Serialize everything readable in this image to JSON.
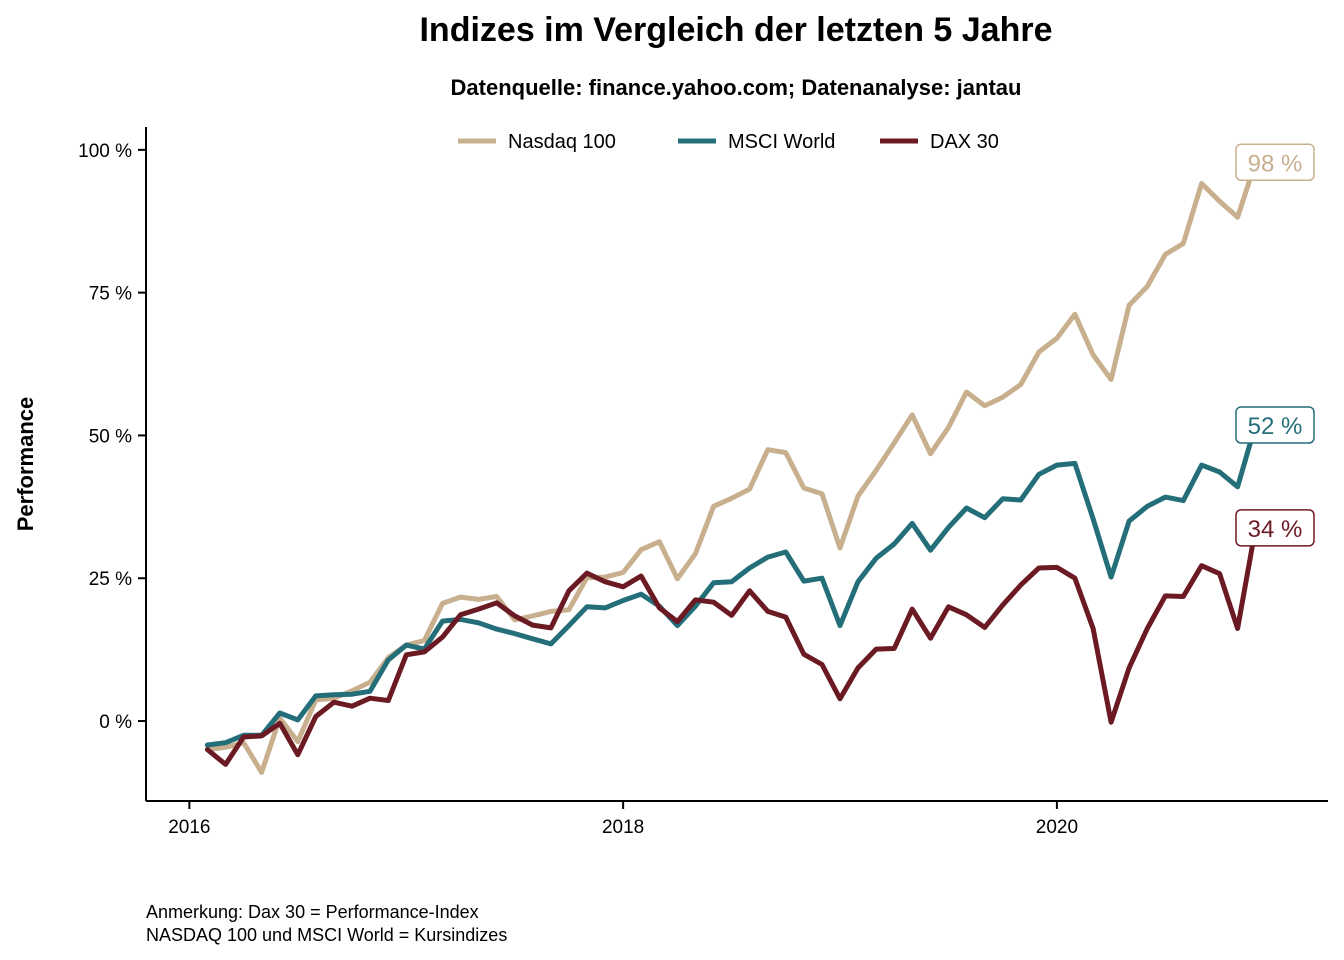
{
  "chart_data": {
    "type": "line",
    "title": "Indizes im Vergleich der letzten 5 Jahre",
    "subtitle": "Datenquelle: finance.yahoo.com; Datenanalyse: jantau",
    "xlabel": "",
    "ylabel": "Performance",
    "xlim": [
      2015.8,
      2021.25
    ],
    "ylim": [
      -14,
      104
    ],
    "x_ticks": [
      {
        "value": 2016,
        "label": "2016"
      },
      {
        "value": 2018,
        "label": "2018"
      },
      {
        "value": 2020,
        "label": "2020"
      }
    ],
    "y_ticks": [
      {
        "value": 0,
        "label": "0 %"
      },
      {
        "value": 25,
        "label": "25 %"
      },
      {
        "value": 50,
        "label": "50 %"
      },
      {
        "value": 75,
        "label": "75 %"
      },
      {
        "value": 100,
        "label": "100 %"
      }
    ],
    "grid": false,
    "legend_position": "top",
    "x": [
      2016.083,
      2016.167,
      2016.25,
      2016.333,
      2016.417,
      2016.5,
      2016.583,
      2016.667,
      2016.75,
      2016.833,
      2016.917,
      2017.0,
      2017.083,
      2017.167,
      2017.25,
      2017.333,
      2017.417,
      2017.5,
      2017.583,
      2017.667,
      2017.75,
      2017.833,
      2017.917,
      2018.0,
      2018.083,
      2018.167,
      2018.25,
      2018.333,
      2018.417,
      2018.5,
      2018.583,
      2018.667,
      2018.75,
      2018.833,
      2018.917,
      2019.0,
      2019.083,
      2019.167,
      2019.25,
      2019.333,
      2019.417,
      2019.5,
      2019.583,
      2019.667,
      2019.75,
      2019.833,
      2019.917,
      2020.0,
      2020.083,
      2020.167,
      2020.25,
      2020.333,
      2020.417,
      2020.5,
      2020.583,
      2020.667,
      2020.75,
      2020.833,
      2020.917
    ],
    "series": [
      {
        "name": "Nasdaq 100",
        "color": "#c8b08f",
        "end_label": "98 %",
        "values": [
          -5.0,
          -4.6,
          -3.8,
          -9.0,
          0.5,
          -3.6,
          3.7,
          4.0,
          5.3,
          6.8,
          11.1,
          13.3,
          14.1,
          20.6,
          21.7,
          21.3,
          21.8,
          17.7,
          18.4,
          19.2,
          19.5,
          25.1,
          25.2,
          26.0,
          30.0,
          31.4,
          24.9,
          29.3,
          37.6,
          39.0,
          40.6,
          47.5,
          47.0,
          40.8,
          39.8,
          30.3,
          39.4,
          43.9,
          48.7,
          53.6,
          46.8,
          51.4,
          57.6,
          55.2,
          56.7,
          58.9,
          64.6,
          67.0,
          71.2,
          64.1,
          59.8,
          72.8,
          76.1,
          81.7,
          83.6,
          94.1,
          91.0,
          88.2,
          98.0
        ]
      },
      {
        "name": "MSCI World",
        "color": "#236e78",
        "end_label": "52 %",
        "values": [
          -4.2,
          -3.8,
          -2.5,
          -2.5,
          1.4,
          0.2,
          4.4,
          4.6,
          4.7,
          5.2,
          10.7,
          13.3,
          12.6,
          17.5,
          17.8,
          17.2,
          16.1,
          15.3,
          14.4,
          13.5,
          16.7,
          20.0,
          19.8,
          21.1,
          22.2,
          20.1,
          16.7,
          20.1,
          24.2,
          24.4,
          26.8,
          28.7,
          29.6,
          24.5,
          25.0,
          16.7,
          24.4,
          28.5,
          31.0,
          34.6,
          29.9,
          33.9,
          37.3,
          35.6,
          38.9,
          38.7,
          43.2,
          44.8,
          45.1,
          35.4,
          25.2,
          35.0,
          37.6,
          39.2,
          38.6,
          44.8,
          43.6,
          41.0,
          52.0
        ]
      },
      {
        "name": "DAX 30",
        "color": "#6b1a23",
        "end_label": "34 %",
        "values": [
          -5.0,
          -7.6,
          -2.8,
          -2.6,
          -0.4,
          -5.9,
          0.8,
          3.3,
          2.6,
          4.0,
          3.6,
          11.6,
          12.1,
          14.7,
          18.6,
          19.6,
          20.7,
          18.4,
          16.8,
          16.3,
          22.8,
          25.9,
          24.4,
          23.5,
          25.4,
          19.8,
          17.4,
          21.2,
          20.8,
          18.5,
          22.8,
          19.2,
          18.2,
          11.7,
          9.9,
          3.9,
          9.3,
          12.6,
          12.7,
          19.6,
          14.5,
          20.0,
          18.6,
          16.4,
          20.3,
          23.8,
          26.8,
          26.9,
          25.0,
          16.2,
          -0.2,
          9.3,
          16.2,
          21.9,
          21.8,
          27.2,
          25.8,
          16.2,
          34.0
        ]
      }
    ]
  },
  "note": {
    "line1": "Anmerkung: Dax 30 = Performance-Index",
    "line2": "NASDAQ 100 und MSCI World = Kursindizes"
  }
}
